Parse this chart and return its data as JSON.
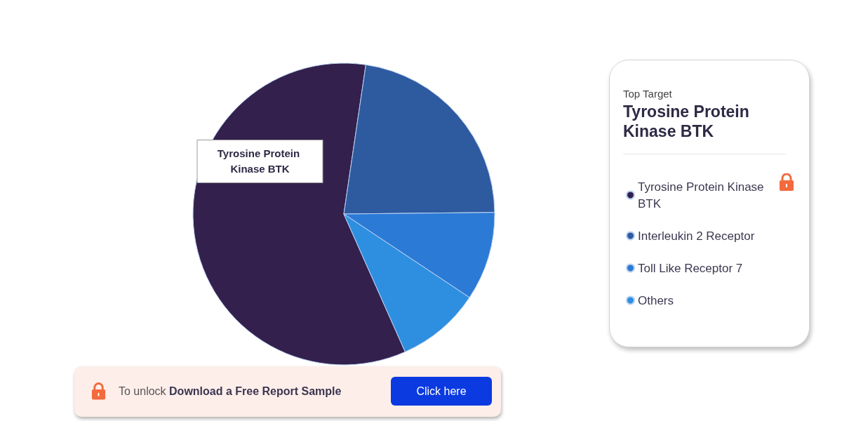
{
  "chart_data": {
    "type": "pie",
    "categories": [
      "Tyrosine Protein Kinase BTK",
      "Interleukin 2 Receptor",
      "Toll Like Receptor 7",
      "Others"
    ],
    "values": [
      59,
      22.5,
      9.5,
      9
    ],
    "colors": [
      "#33204d",
      "#2e5aa0",
      "#2b7ad6",
      "#2e8fe0"
    ],
    "value_labels": [
      "Tyrosine Protein Kinase BTK",
      null,
      null,
      null
    ],
    "legend": "right",
    "legend_title": "Top Target",
    "annotations": [
      "Tyrosine Protein Kinase BTK",
      "To unlock",
      "Download a Free Report Sample",
      "Click here"
    ]
  }
}
